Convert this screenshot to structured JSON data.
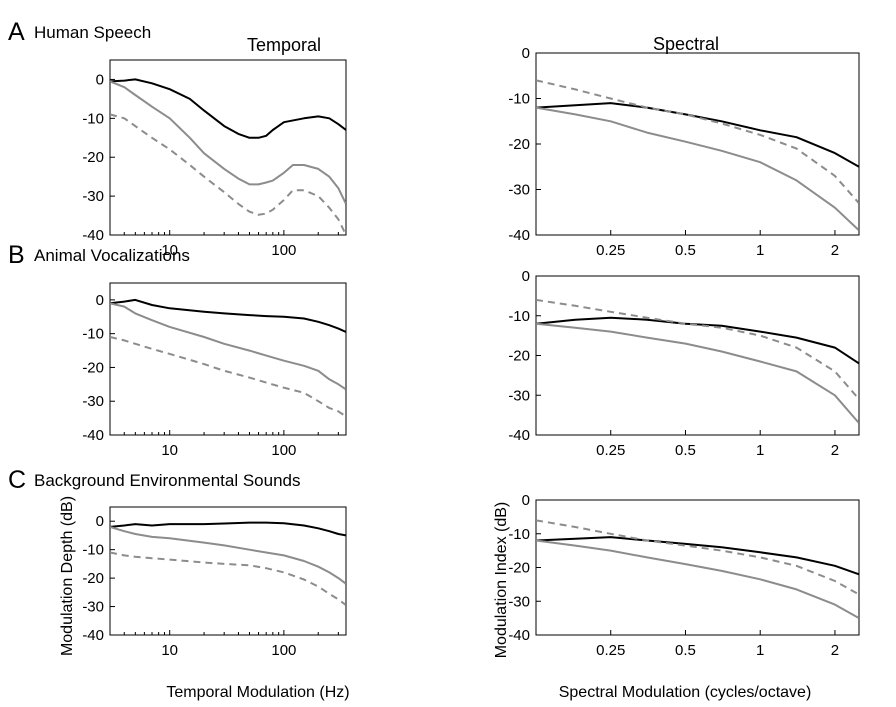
{
  "figure": {
    "column_titles": [
      "Temporal",
      "Spectral"
    ],
    "rows": [
      {
        "letter": "A",
        "title": "Human Speech"
      },
      {
        "letter": "B",
        "title": "Animal Vocalizations"
      },
      {
        "letter": "C",
        "title": "Background Environmental Sounds"
      }
    ],
    "axes_text": {
      "temporal_xlabel": "Temporal Modulation (Hz)",
      "temporal_ylabel": "Modulation Depth (dB)",
      "spectral_xlabel": "Spectral Modulation (cycles/octave)",
      "spectral_ylabel": "Modulation Index (dB)"
    },
    "colors": {
      "black": "#000000",
      "gray": "#8c8c8c",
      "dashed": "#8c8c8c"
    }
  },
  "chart_data": [
    {
      "type": "line",
      "id": "A-temporal",
      "row": "A",
      "column": "Temporal",
      "xscale": "log",
      "xlim": [
        3,
        350
      ],
      "ylim": [
        -40,
        5
      ],
      "xticks": [
        10,
        100
      ],
      "yticks": [
        0,
        -10,
        -20,
        -30,
        -40
      ],
      "series": [
        {
          "style": "solid-black",
          "x": [
            3,
            4,
            5,
            7,
            10,
            15,
            20,
            30,
            40,
            50,
            60,
            70,
            80,
            100,
            150,
            200,
            250,
            300,
            350
          ],
          "y": [
            -0.5,
            -0.3,
            0,
            -1,
            -2.5,
            -5,
            -8,
            -12,
            -14,
            -15,
            -15,
            -14.5,
            -13,
            -11,
            -10,
            -9.5,
            -10,
            -11.5,
            -13
          ]
        },
        {
          "style": "solid-gray",
          "x": [
            3,
            4,
            5,
            7,
            10,
            15,
            20,
            30,
            40,
            50,
            60,
            70,
            80,
            100,
            120,
            150,
            200,
            250,
            300,
            350
          ],
          "y": [
            -0.5,
            -2,
            -4,
            -7,
            -10,
            -15,
            -19,
            -23,
            -25.5,
            -27,
            -27,
            -26.5,
            -26,
            -24,
            -22,
            -22,
            -23,
            -25,
            -28,
            -32
          ]
        },
        {
          "style": "dashed-gray",
          "x": [
            3,
            4,
            5,
            7,
            10,
            15,
            20,
            30,
            40,
            50,
            60,
            70,
            80,
            100,
            120,
            150,
            200,
            250,
            300,
            350
          ],
          "y": [
            -9,
            -10,
            -12,
            -15,
            -18,
            -22,
            -25,
            -29,
            -32,
            -34,
            -34.8,
            -34.5,
            -33.5,
            -31,
            -28.5,
            -28.5,
            -30,
            -33,
            -36,
            -40
          ]
        }
      ]
    },
    {
      "type": "line",
      "id": "A-spectral",
      "row": "A",
      "column": "Spectral",
      "xscale": "log",
      "xlim": [
        0.125,
        2.5
      ],
      "ylim": [
        -40,
        0
      ],
      "xticks": [
        0.25,
        0.5,
        1,
        2
      ],
      "yticks": [
        0,
        -10,
        -20,
        -30,
        -40
      ],
      "series": [
        {
          "style": "solid-black",
          "x": [
            0.125,
            0.18,
            0.25,
            0.35,
            0.5,
            0.7,
            1,
            1.4,
            2,
            2.5
          ],
          "y": [
            -12,
            -11.5,
            -11,
            -12,
            -13.5,
            -15,
            -17,
            -18.5,
            -22,
            -25
          ]
        },
        {
          "style": "solid-gray",
          "x": [
            0.125,
            0.18,
            0.25,
            0.35,
            0.5,
            0.7,
            1,
            1.4,
            2,
            2.5
          ],
          "y": [
            -12,
            -13.5,
            -15,
            -17.5,
            -19.5,
            -21.5,
            -24,
            -28,
            -34,
            -39
          ]
        },
        {
          "style": "dashed-gray",
          "x": [
            0.125,
            0.18,
            0.25,
            0.35,
            0.5,
            0.7,
            1,
            1.4,
            2,
            2.5
          ],
          "y": [
            -6,
            -8,
            -10,
            -12,
            -13.5,
            -15.5,
            -18,
            -21,
            -27,
            -33
          ]
        }
      ]
    },
    {
      "type": "line",
      "id": "B-temporal",
      "row": "B",
      "column": "Temporal",
      "xscale": "log",
      "xlim": [
        3,
        350
      ],
      "ylim": [
        -40,
        5
      ],
      "xticks": [
        10,
        100
      ],
      "yticks": [
        0,
        -10,
        -20,
        -30,
        -40
      ],
      "series": [
        {
          "style": "solid-black",
          "x": [
            3,
            4,
            5,
            7,
            10,
            20,
            30,
            50,
            70,
            100,
            150,
            200,
            250,
            300,
            350
          ],
          "y": [
            -1,
            -0.5,
            0,
            -1.5,
            -2.5,
            -3.5,
            -4,
            -4.5,
            -4.8,
            -5,
            -5.5,
            -6.5,
            -7.5,
            -8.5,
            -9.5
          ]
        },
        {
          "style": "solid-gray",
          "x": [
            3,
            4,
            5,
            7,
            10,
            20,
            30,
            50,
            70,
            100,
            150,
            200,
            250,
            300,
            350
          ],
          "y": [
            -1,
            -2,
            -4,
            -6,
            -8,
            -11,
            -13,
            -15,
            -16.5,
            -18,
            -19.5,
            -21,
            -23.5,
            -25,
            -26.5
          ]
        },
        {
          "style": "dashed-gray",
          "x": [
            3,
            4,
            5,
            7,
            10,
            20,
            30,
            50,
            70,
            100,
            150,
            200,
            250,
            300,
            350
          ],
          "y": [
            -11,
            -12,
            -13,
            -14.5,
            -16,
            -19,
            -21,
            -23,
            -24.5,
            -26,
            -27.5,
            -30,
            -32,
            -33,
            -34.5
          ]
        }
      ]
    },
    {
      "type": "line",
      "id": "B-spectral",
      "row": "B",
      "column": "Spectral",
      "xscale": "log",
      "xlim": [
        0.125,
        2.5
      ],
      "ylim": [
        -40,
        0
      ],
      "xticks": [
        0.25,
        0.5,
        1,
        2
      ],
      "yticks": [
        0,
        -10,
        -20,
        -30,
        -40
      ],
      "series": [
        {
          "style": "solid-black",
          "x": [
            0.125,
            0.18,
            0.25,
            0.35,
            0.5,
            0.7,
            1,
            1.4,
            2,
            2.5
          ],
          "y": [
            -12,
            -11,
            -10.5,
            -11,
            -12,
            -12.5,
            -14,
            -15.5,
            -18,
            -22
          ]
        },
        {
          "style": "solid-gray",
          "x": [
            0.125,
            0.18,
            0.25,
            0.35,
            0.5,
            0.7,
            1,
            1.4,
            2,
            2.5
          ],
          "y": [
            -12,
            -13,
            -14,
            -15.5,
            -17,
            -19,
            -21.5,
            -24,
            -30,
            -37
          ]
        },
        {
          "style": "dashed-gray",
          "x": [
            0.125,
            0.18,
            0.25,
            0.35,
            0.5,
            0.7,
            1,
            1.4,
            2,
            2.5
          ],
          "y": [
            -6,
            -7.5,
            -9,
            -10.5,
            -12,
            -13,
            -15,
            -18,
            -24,
            -31
          ]
        }
      ]
    },
    {
      "type": "line",
      "id": "C-temporal",
      "row": "C",
      "column": "Temporal",
      "xscale": "log",
      "xlim": [
        3,
        350
      ],
      "ylim": [
        -40,
        5
      ],
      "xticks": [
        10,
        100
      ],
      "yticks": [
        0,
        -10,
        -20,
        -30,
        -40
      ],
      "series": [
        {
          "style": "solid-black",
          "x": [
            3,
            4,
            5,
            7,
            10,
            20,
            30,
            50,
            70,
            100,
            150,
            200,
            250,
            300,
            350
          ],
          "y": [
            -2,
            -1.5,
            -1,
            -1.5,
            -1,
            -1,
            -0.8,
            -0.5,
            -0.5,
            -0.7,
            -1.5,
            -2.5,
            -3.5,
            -4.5,
            -5
          ]
        },
        {
          "style": "solid-gray",
          "x": [
            3,
            4,
            5,
            7,
            10,
            20,
            30,
            50,
            70,
            100,
            150,
            200,
            250,
            300,
            350
          ],
          "y": [
            -2,
            -3.5,
            -4.5,
            -5.5,
            -6,
            -7.5,
            -8.5,
            -10,
            -11,
            -12,
            -14,
            -16,
            -18,
            -20,
            -22
          ]
        },
        {
          "style": "dashed-gray",
          "x": [
            3,
            4,
            5,
            7,
            10,
            20,
            30,
            50,
            70,
            100,
            150,
            200,
            250,
            300,
            350
          ],
          "y": [
            -11,
            -12,
            -12.5,
            -13,
            -13.5,
            -14.5,
            -15,
            -15.5,
            -16.5,
            -18,
            -20.5,
            -23,
            -25.5,
            -27.5,
            -29.5
          ]
        }
      ]
    },
    {
      "type": "line",
      "id": "C-spectral",
      "row": "C",
      "column": "Spectral",
      "xscale": "log",
      "xlim": [
        0.125,
        2.5
      ],
      "ylim": [
        -40,
        0
      ],
      "xticks": [
        0.25,
        0.5,
        1,
        2
      ],
      "yticks": [
        0,
        -10,
        -20,
        -30,
        -40
      ],
      "series": [
        {
          "style": "solid-black",
          "x": [
            0.125,
            0.18,
            0.25,
            0.35,
            0.5,
            0.7,
            1,
            1.4,
            2,
            2.5
          ],
          "y": [
            -12,
            -11.5,
            -11,
            -12,
            -13,
            -14,
            -15.5,
            -17,
            -19.5,
            -22
          ]
        },
        {
          "style": "solid-gray",
          "x": [
            0.125,
            0.18,
            0.25,
            0.35,
            0.5,
            0.7,
            1,
            1.4,
            2,
            2.5
          ],
          "y": [
            -12,
            -13.5,
            -15,
            -17,
            -19,
            -21,
            -23.5,
            -26.5,
            -31,
            -35
          ]
        },
        {
          "style": "dashed-gray",
          "x": [
            0.125,
            0.18,
            0.25,
            0.35,
            0.5,
            0.7,
            1,
            1.4,
            2,
            2.5
          ],
          "y": [
            -6,
            -8,
            -10,
            -12,
            -13.5,
            -15,
            -17,
            -19.5,
            -24,
            -28
          ]
        }
      ]
    }
  ]
}
